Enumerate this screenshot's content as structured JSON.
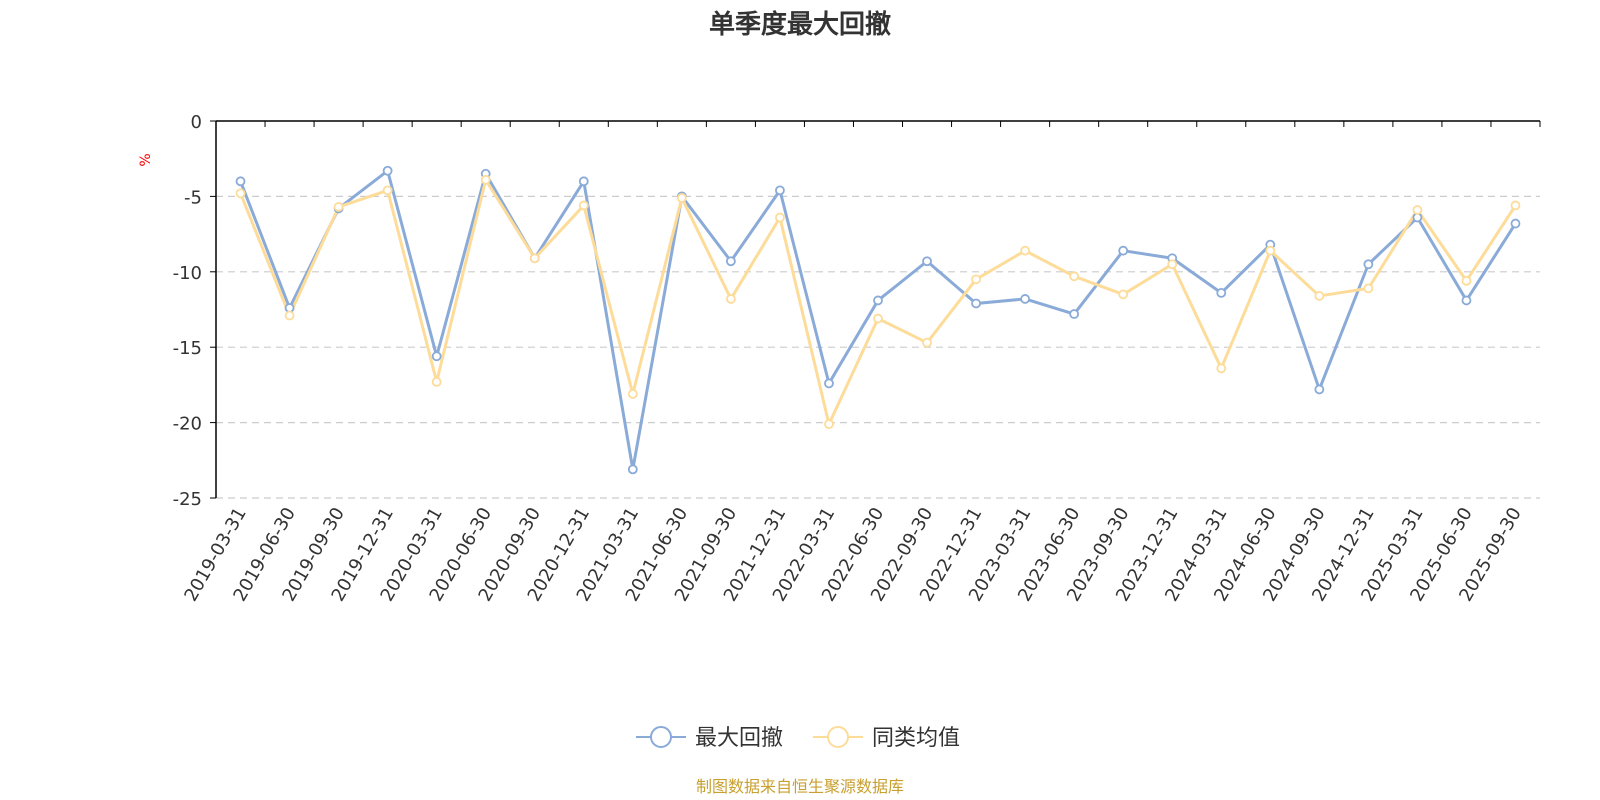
{
  "chart_data": {
    "type": "line",
    "title": "单季度最大回撤",
    "ylabel": "%",
    "xlabel": "",
    "ylim": [
      -25,
      0
    ],
    "yticks": [
      0,
      -5,
      -10,
      -15,
      -20,
      -25
    ],
    "grid": true,
    "legend_position": "bottom",
    "categories": [
      "2019-03-31",
      "2019-06-30",
      "2019-09-30",
      "2019-12-31",
      "2020-03-31",
      "2020-06-30",
      "2020-09-30",
      "2020-12-31",
      "2021-03-31",
      "2021-06-30",
      "2021-09-30",
      "2021-12-31",
      "2022-03-31",
      "2022-06-30",
      "2022-09-30",
      "2022-12-31",
      "2023-03-31",
      "2023-06-30",
      "2023-09-30",
      "2023-12-31",
      "2024-03-31",
      "2024-06-30",
      "2024-09-30",
      "2024-12-31",
      "2025-03-31",
      "2025-06-30",
      "2025-09-30"
    ],
    "series": [
      {
        "name": "最大回撤",
        "color": "#8aaad8",
        "values": [
          -4.0,
          -12.4,
          -5.8,
          -3.3,
          -15.6,
          -3.5,
          -9.1,
          -4.0,
          -23.1,
          -5.0,
          -9.3,
          -4.6,
          -17.4,
          -11.9,
          -9.3,
          -12.1,
          -11.8,
          -12.8,
          -8.6,
          -9.1,
          -11.4,
          -8.2,
          -17.8,
          -9.5,
          -6.4,
          -11.9,
          -6.8
        ]
      },
      {
        "name": "同类均值",
        "color": "#fddc9a",
        "values": [
          -4.8,
          -12.9,
          -5.7,
          -4.6,
          -17.3,
          -3.9,
          -9.1,
          -5.6,
          -18.1,
          -5.1,
          -11.8,
          -6.4,
          -20.1,
          -13.1,
          -14.7,
          -10.5,
          -8.6,
          -10.3,
          -11.5,
          -9.5,
          -16.4,
          -8.6,
          -11.6,
          -11.1,
          -5.9,
          -10.6,
          -5.6
        ]
      }
    ]
  },
  "source": {
    "text": "制图数据来自恒生聚源数据库",
    "color": "#c8a030"
  },
  "colors": {
    "axis": "#000000",
    "grid": "#cccccc",
    "text": "#333333"
  }
}
